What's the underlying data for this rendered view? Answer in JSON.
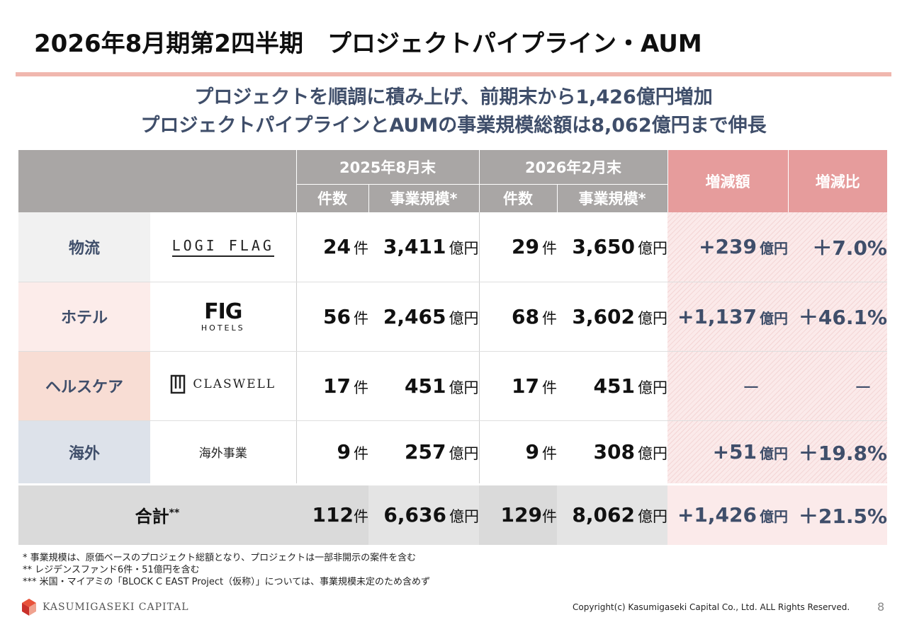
{
  "title": "2026年8月期第2四半期　プロジェクトパイプライン・AUM",
  "subtitle": {
    "line1": "プロジェクトを順調に積み上げ、前期末から1,426億円増加",
    "line2": "プロジェクトパイプラインとAUMの事業規模総額は8,062億円まで伸長"
  },
  "table": {
    "period1": "2025年8月末",
    "period2": "2026年2月末",
    "col_count": "件数",
    "col_scale": "事業規模*",
    "col_change": "増減額",
    "col_ratio": "増減比",
    "count_unit": "件",
    "yen_unit": "億円",
    "rows": [
      {
        "category": "物流",
        "brand": "LOGI FLAG",
        "c1": "24",
        "s1": "3,411",
        "c2": "29",
        "s2": "3,650",
        "chg": "+239",
        "pct": "＋7.0%"
      },
      {
        "category": "ホテル",
        "brand": "FIG",
        "brand_sub": "HOTELS",
        "c1": "56",
        "s1": "2,465",
        "c2": "68",
        "s2": "3,602",
        "chg": "+1,137",
        "pct": "＋46.1%"
      },
      {
        "category": "ヘルスケア",
        "brand": "CLASWELL",
        "c1": "17",
        "s1": "451",
        "c2": "17",
        "s2": "451",
        "chg": "ー",
        "pct": "ー"
      },
      {
        "category": "海外",
        "brand": "海外事業",
        "c1": "9",
        "s1": "257",
        "c2": "9",
        "s2": "308",
        "chg": "+51",
        "pct": "＋19.8%"
      }
    ],
    "total": {
      "label": "合計",
      "mark": "**",
      "c1": "112",
      "s1": "6,636",
      "c2": "129",
      "s2": "8,062",
      "chg": "+1,426",
      "pct": "＋21.5%"
    }
  },
  "notes": [
    "* 事業規模は、原価ベースのプロジェクト総額となり、プロジェクトは一部非開示の案件を含む",
    "** レジデンスファンド6件・51億円を含む",
    "*** 米国・マイアミの「BLOCK C EAST Project（仮称）」については、事業規模未定のため含めず"
  ],
  "footer": {
    "logo_text": "KASUMIGASEKI CAPITAL",
    "copyright": "Copyright(c) Kasumigaseki Capital Co., Ltd. ALL Rights Reserved.",
    "page": "8"
  },
  "colors": {
    "accent_rule": "#f0b7ae",
    "header_gray": "#a9a6a5",
    "header_pink": "#e69c9c",
    "text_navy": "#3f4e6a"
  }
}
